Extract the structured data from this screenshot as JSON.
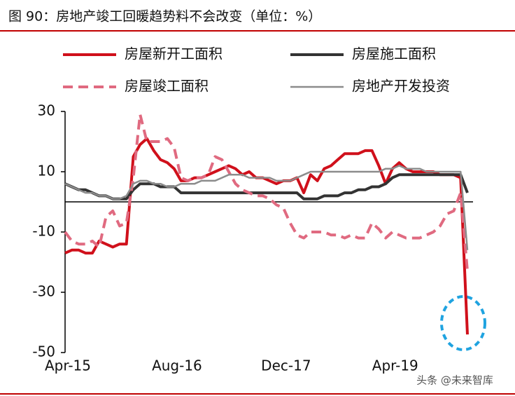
{
  "chart_data": {
    "type": "line",
    "title": "图 90：房地产竣工回暖趋势料不会改变（单位：%）",
    "watermark": "头条 @未来智库",
    "categories": [
      "Apr-15",
      null,
      null,
      null,
      null,
      null,
      null,
      null,
      null,
      null,
      null,
      null,
      null,
      null,
      null,
      null,
      "Aug-16",
      null,
      null,
      null,
      null,
      null,
      null,
      null,
      null,
      null,
      null,
      null,
      null,
      null,
      null,
      null,
      "Dec-17",
      null,
      null,
      null,
      null,
      null,
      null,
      null,
      null,
      null,
      null,
      null,
      null,
      null,
      null,
      null,
      "Apr-19",
      null,
      null,
      null,
      null,
      null,
      null,
      null,
      null,
      null,
      null,
      null
    ],
    "series": [
      {
        "name": "房屋新开工面积",
        "color": "#d0101b",
        "width": 4,
        "dash": false,
        "values": [
          -17,
          -16,
          -16,
          -17,
          -17,
          -13,
          -14,
          -15,
          -14,
          -14,
          15,
          19,
          21,
          17,
          14,
          13,
          11,
          7,
          7,
          8,
          8,
          9,
          10,
          11,
          12,
          11,
          9,
          10,
          8,
          8,
          7,
          6,
          7,
          7,
          8,
          3,
          9,
          7,
          11,
          12,
          14,
          16,
          16,
          16,
          17,
          17,
          12,
          6,
          11,
          13,
          11,
          10,
          10,
          10,
          10,
          9,
          9,
          9,
          8,
          -44
        ]
      },
      {
        "name": "房屋施工面积",
        "color": "#333333",
        "width": 4,
        "dash": false,
        "values": [
          6,
          5,
          4,
          4,
          3,
          2,
          2,
          1,
          1,
          1,
          4,
          6,
          6,
          6,
          5,
          5,
          5,
          3,
          3,
          3,
          3,
          3,
          3,
          3,
          3,
          3,
          3,
          3,
          3,
          3,
          3,
          3,
          3,
          3,
          3,
          1,
          1,
          1,
          2,
          2,
          2,
          3,
          3,
          4,
          4,
          5,
          5,
          6,
          8,
          9,
          9,
          9,
          9,
          9,
          9,
          9,
          9,
          9,
          9,
          3
        ]
      },
      {
        "name": "房屋竣工面积",
        "color": "#e06a80",
        "width": 4,
        "dash": true,
        "values": [
          -10,
          -13,
          -14,
          -14,
          -13,
          -15,
          -5,
          -3,
          -8,
          -7,
          8,
          29,
          20,
          20,
          20,
          21,
          18,
          8,
          7,
          8,
          8,
          9,
          15,
          14,
          10,
          6,
          4,
          3,
          2,
          2,
          1,
          -1,
          -2,
          -7,
          -11,
          -12,
          -10,
          -10,
          -10,
          -11,
          -11,
          -12,
          -11,
          -12,
          -12,
          -7,
          -9,
          -12,
          -10,
          -11,
          -12,
          -12,
          -12,
          -11,
          -10,
          -8,
          -4,
          -3,
          3,
          -23
        ]
      },
      {
        "name": "房地产开发投资",
        "color": "#8c8c8c",
        "width": 2.5,
        "dash": false,
        "values": [
          6,
          5,
          4,
          3,
          3,
          2,
          2,
          1,
          1,
          2,
          6,
          7,
          7,
          6,
          6,
          5,
          5,
          6,
          6,
          6,
          7,
          7,
          7,
          8,
          9,
          9,
          9,
          8,
          8,
          8,
          8,
          7,
          7,
          7,
          8,
          9,
          10,
          10,
          10,
          10,
          10,
          10,
          10,
          10,
          10,
          10,
          10,
          11,
          11,
          12,
          11,
          11,
          11,
          10,
          10,
          10,
          10,
          10,
          10,
          -16
        ]
      }
    ],
    "ylim": [
      -50,
      30
    ],
    "yticks": [
      30,
      10,
      -10,
      -30,
      -50
    ]
  }
}
